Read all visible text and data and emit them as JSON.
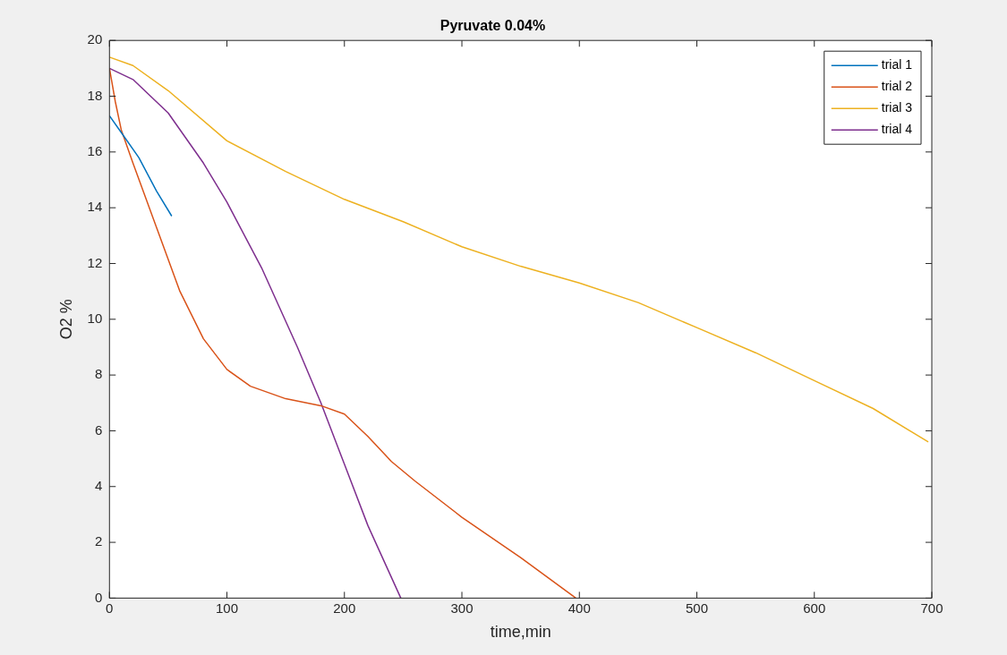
{
  "chart_data": {
    "type": "line",
    "title": "Pyruvate 0.04%",
    "xlabel": "time,min",
    "ylabel": "O2 %",
    "xlim": [
      0,
      700
    ],
    "xticks": [
      0,
      100,
      200,
      300,
      400,
      500,
      600,
      700
    ],
    "ylim": [
      0,
      20
    ],
    "yticks": [
      0,
      2,
      4,
      6,
      8,
      10,
      12,
      14,
      16,
      18,
      20
    ],
    "grid": false,
    "legend": "top right",
    "marker": "none",
    "line_style": "solid",
    "series": [
      {
        "name": "trial 1",
        "color": "#0072bd",
        "x": [
          0,
          10,
          25,
          40,
          53
        ],
        "values": [
          17.3,
          16.7,
          15.8,
          14.6,
          13.7
        ]
      },
      {
        "name": "trial 2",
        "color": "#d95319",
        "x": [
          0,
          5,
          10,
          20,
          40,
          60,
          80,
          100,
          120,
          150,
          180,
          200,
          220,
          240,
          260,
          300,
          350,
          397
        ],
        "values": [
          19,
          17.8,
          16.8,
          15.6,
          13.3,
          11,
          9.3,
          8.2,
          7.6,
          7.15,
          6.9,
          6.6,
          5.8,
          4.9,
          4.2,
          2.9,
          1.45,
          0
        ]
      },
      {
        "name": "trial 3",
        "color": "#edb120",
        "x": [
          0,
          20,
          50,
          100,
          150,
          200,
          250,
          300,
          350,
          400,
          450,
          500,
          550,
          600,
          650,
          697
        ],
        "values": [
          19.4,
          19.1,
          18.2,
          16.4,
          15.3,
          14.3,
          13.5,
          12.6,
          11.9,
          11.3,
          10.6,
          9.7,
          8.8,
          7.8,
          6.8,
          5.6
        ]
      },
      {
        "name": "trial 4",
        "color": "#7e2f8e",
        "x": [
          0,
          20,
          50,
          80,
          100,
          130,
          160,
          180,
          200,
          220,
          248
        ],
        "values": [
          19,
          18.6,
          17.4,
          15.6,
          14.2,
          11.8,
          9,
          7,
          4.8,
          2.6,
          0
        ]
      }
    ]
  }
}
